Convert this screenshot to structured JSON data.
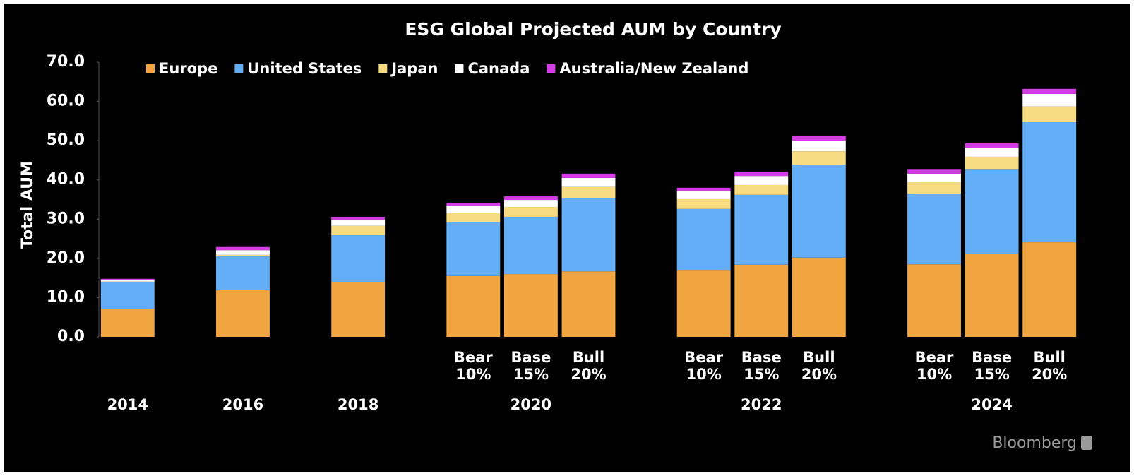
{
  "chart_data": {
    "type": "stacked_bar",
    "title": "ESG Global Projected AUM by Country",
    "y_label": "Total AUM",
    "source": "Bloomberg",
    "categories": [
      null,
      null,
      null,
      null,
      null,
      null,
      [
        "Bear",
        "10%"
      ],
      [
        "Base",
        "15%"
      ],
      [
        "Bull",
        "20%"
      ],
      null,
      [
        "Bear",
        "10%"
      ],
      [
        "Base",
        "15%"
      ],
      [
        "Bull",
        "20%"
      ],
      null,
      [
        "Bear",
        "10%"
      ],
      [
        "Base",
        "15%"
      ],
      [
        "Bull",
        "20%"
      ]
    ],
    "groups": [
      "2014",
      null,
      "2016",
      null,
      "2018",
      null,
      null,
      "2020",
      null,
      null,
      null,
      "2022",
      null,
      null,
      null,
      "2024",
      null
    ],
    "series": [
      {
        "name": "Europe",
        "color": "#f0a540",
        "values": [
          7.2,
          null,
          11.9,
          null,
          14.0,
          null,
          15.5,
          16.0,
          16.7,
          null,
          16.9,
          18.4,
          20.2,
          null,
          18.5,
          21.2,
          24.1
        ]
      },
      {
        "name": "United States",
        "color": "#64aef7",
        "values": [
          6.7,
          null,
          8.6,
          null,
          11.9,
          null,
          13.7,
          14.6,
          18.6,
          null,
          15.7,
          17.8,
          23.7,
          null,
          18.0,
          21.4,
          30.6
        ]
      },
      {
        "name": "Japan",
        "color": "#f8dc82",
        "values": [
          0.2,
          null,
          0.4,
          null,
          2.4,
          null,
          2.3,
          2.5,
          2.9,
          null,
          2.5,
          2.5,
          3.4,
          null,
          2.9,
          3.3,
          4.0
        ]
      },
      {
        "name": "Canada",
        "color": "#ffffff",
        "values": [
          0.3,
          null,
          1.2,
          null,
          1.6,
          null,
          1.8,
          1.8,
          2.3,
          null,
          2.0,
          2.3,
          2.7,
          null,
          2.2,
          2.3,
          3.2
        ]
      },
      {
        "name": "Australia/New Zealand",
        "color": "#d63ce6",
        "values": [
          0.4,
          null,
          0.8,
          null,
          0.7,
          null,
          0.9,
          0.9,
          1.1,
          null,
          0.9,
          1.1,
          1.3,
          null,
          1.0,
          1.1,
          1.3
        ]
      }
    ],
    "ylim": [
      0,
      70
    ],
    "yticks": [
      {
        "value": 0,
        "label": "0.0"
      },
      {
        "value": 10,
        "label": "10.0"
      },
      {
        "value": 20,
        "label": "20.0"
      },
      {
        "value": 30,
        "label": "30.0"
      },
      {
        "value": 40,
        "label": "40.0"
      },
      {
        "value": 50,
        "label": "50.0"
      },
      {
        "value": 60,
        "label": "60.0"
      },
      {
        "value": 70,
        "label": "70.0"
      }
    ]
  }
}
